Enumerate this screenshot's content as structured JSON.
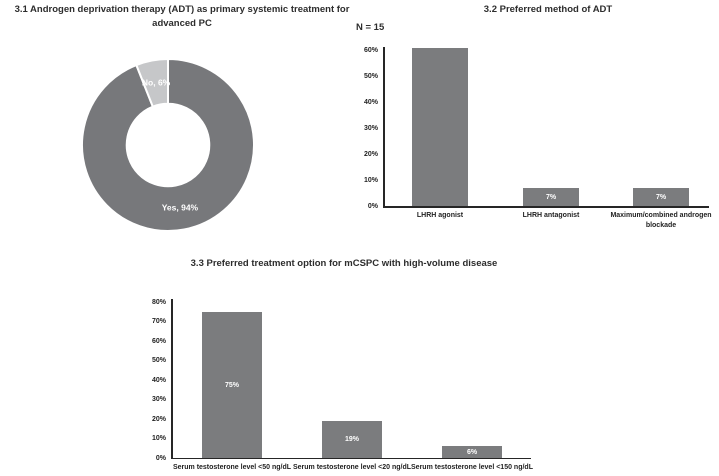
{
  "page": {
    "background": "#ffffff"
  },
  "chart_data": [
    {
      "id": "adt-primary-donut",
      "type": "pie",
      "subtype": "donut",
      "title": "3.1 Androgen deprivation therapy (ADT) as primary systemic treatment for advanced PC",
      "slices": [
        {
          "label": "Yes, 94%",
          "category": "Yes",
          "value": 94,
          "color": "#77787b"
        },
        {
          "label": "No, 6%",
          "category": "No",
          "value": 6,
          "color": "#c6c7c9"
        }
      ],
      "slice_label_color": "#ffffff",
      "hole_ratio": 0.48,
      "legend": "none"
    },
    {
      "id": "adt-method-bar",
      "type": "bar",
      "title": "3.2 Preferred method of ADT",
      "annotation": "N = 15",
      "categories": [
        "LHRH agonist",
        "LHRH antagonist",
        "Maximum/combined androgen blockade"
      ],
      "values": [
        61,
        7,
        7
      ],
      "bar_labels": [
        "",
        "7%",
        "7%"
      ],
      "bar_label_color": "#ffffff",
      "bar_color": "#7b7c7e",
      "xlabel": "",
      "ylabel": "",
      "ylim": [
        0,
        61.5
      ],
      "ytick_max": 60,
      "ytick_step": 10,
      "ytick_suffix": "%",
      "grid": "off",
      "legend": "none"
    },
    {
      "id": "mcspc-treatment-bar",
      "type": "bar",
      "title": "3.3 Preferred treatment option for mCSPC with high-volume disease",
      "categories": [
        "Serum testosterone level <50 ng/dL",
        "Serum testosterone level <20 ng/dL",
        "Serum testosterone level <150 ng/dL"
      ],
      "values": [
        75,
        19,
        6
      ],
      "bar_labels": [
        "75%",
        "19%",
        "6%"
      ],
      "bar_label_color": "#ffffff",
      "bar_color": "#7b7c7e",
      "xlabel": "",
      "ylabel": "",
      "ylim": [
        0,
        82
      ],
      "ytick_max": 80,
      "ytick_step": 10,
      "ytick_suffix": "%",
      "grid": "off",
      "legend": "none"
    }
  ]
}
